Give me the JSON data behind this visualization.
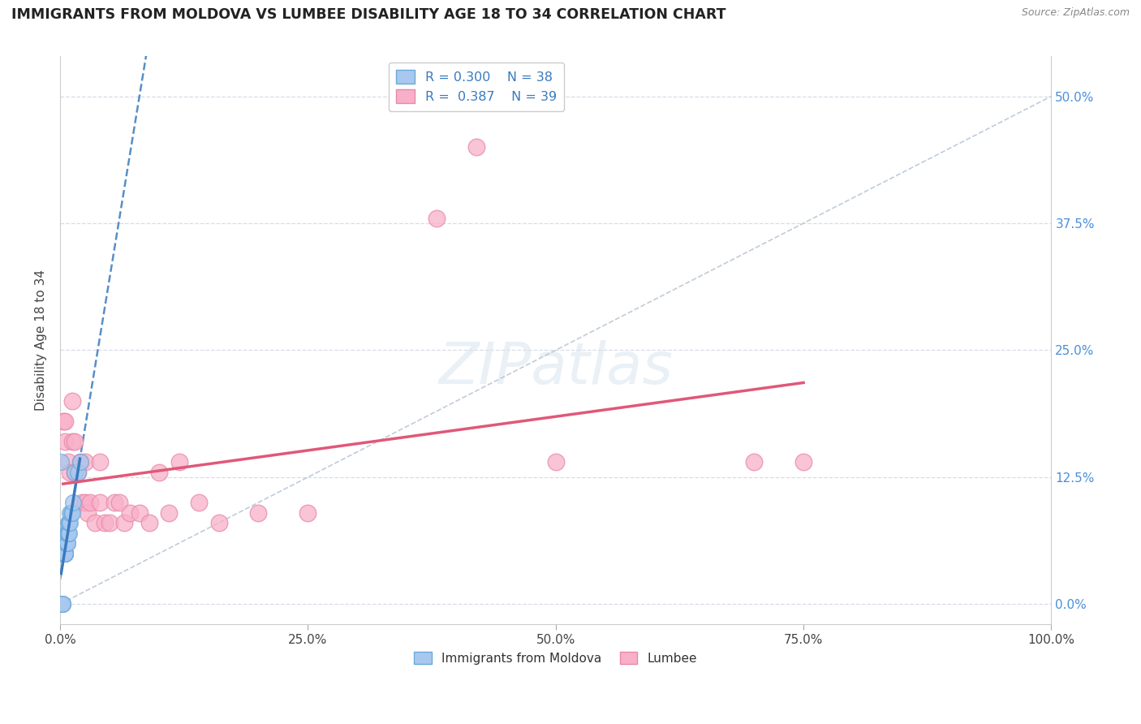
{
  "title": "IMMIGRANTS FROM MOLDOVA VS LUMBEE DISABILITY AGE 18 TO 34 CORRELATION CHART",
  "source": "Source: ZipAtlas.com",
  "ylabel": "Disability Age 18 to 34",
  "xlim": [
    0.0,
    1.0
  ],
  "ylim": [
    -0.02,
    0.54
  ],
  "xticks": [
    0.0,
    0.25,
    0.5,
    0.75,
    1.0
  ],
  "yticks": [
    0.0,
    0.125,
    0.25,
    0.375,
    0.5
  ],
  "moldova_R": 0.3,
  "moldova_N": 38,
  "lumbee_R": 0.387,
  "lumbee_N": 39,
  "moldova_color": "#a8c8f0",
  "moldova_edge_color": "#6aaad8",
  "lumbee_color": "#f8b0c8",
  "lumbee_edge_color": "#e888aa",
  "moldova_line_color": "#3a7abf",
  "lumbee_line_color": "#e05878",
  "ref_line_color": "#c0ccd8",
  "moldova_x": [
    0.001,
    0.001,
    0.002,
    0.002,
    0.002,
    0.003,
    0.003,
    0.003,
    0.003,
    0.004,
    0.004,
    0.004,
    0.005,
    0.005,
    0.005,
    0.005,
    0.005,
    0.005,
    0.006,
    0.006,
    0.006,
    0.007,
    0.007,
    0.007,
    0.007,
    0.008,
    0.008,
    0.008,
    0.009,
    0.009,
    0.01,
    0.01,
    0.011,
    0.012,
    0.013,
    0.015,
    0.018,
    0.02
  ],
  "moldova_y": [
    0.14,
    0.0,
    0.0,
    0.0,
    0.0,
    0.05,
    0.05,
    0.05,
    0.05,
    0.05,
    0.05,
    0.05,
    0.05,
    0.05,
    0.05,
    0.05,
    0.05,
    0.05,
    0.06,
    0.06,
    0.07,
    0.06,
    0.06,
    0.07,
    0.07,
    0.07,
    0.07,
    0.08,
    0.07,
    0.08,
    0.08,
    0.09,
    0.09,
    0.09,
    0.1,
    0.13,
    0.13,
    0.14
  ],
  "lumbee_x": [
    0.003,
    0.005,
    0.005,
    0.008,
    0.01,
    0.012,
    0.012,
    0.015,
    0.015,
    0.018,
    0.02,
    0.022,
    0.025,
    0.025,
    0.028,
    0.03,
    0.035,
    0.04,
    0.04,
    0.045,
    0.05,
    0.055,
    0.06,
    0.065,
    0.07,
    0.08,
    0.09,
    0.1,
    0.11,
    0.12,
    0.14,
    0.16,
    0.2,
    0.25,
    0.38,
    0.42,
    0.5,
    0.7,
    0.75
  ],
  "lumbee_y": [
    0.18,
    0.18,
    0.16,
    0.14,
    0.13,
    0.16,
    0.2,
    0.13,
    0.16,
    0.13,
    0.14,
    0.1,
    0.1,
    0.14,
    0.09,
    0.1,
    0.08,
    0.1,
    0.14,
    0.08,
    0.08,
    0.1,
    0.1,
    0.08,
    0.09,
    0.09,
    0.08,
    0.13,
    0.09,
    0.14,
    0.1,
    0.08,
    0.09,
    0.09,
    0.38,
    0.45,
    0.14,
    0.14,
    0.14
  ],
  "background_color": "#ffffff",
  "grid_color": "#d8dce8"
}
